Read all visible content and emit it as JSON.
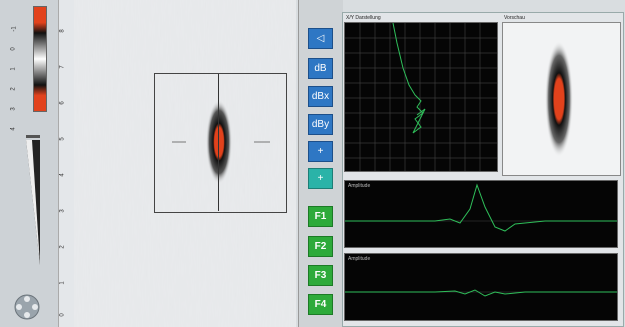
{
  "scale": {
    "labels": [
      "-1",
      "0",
      "1",
      "2",
      "3",
      "4"
    ]
  },
  "ruler": {
    "labels": [
      "8",
      "7",
      "6",
      "5",
      "4",
      "3",
      "2",
      "1",
      "0"
    ]
  },
  "toolbar": {
    "buttons": [
      {
        "name": "cursor",
        "label": "◁"
      },
      {
        "name": "db",
        "label": "dB"
      },
      {
        "name": "db-x",
        "label": "dBx"
      },
      {
        "name": "db-y",
        "label": "dBy"
      },
      {
        "name": "crosshair",
        "label": "+"
      },
      {
        "name": "crosshair-add",
        "label": "+"
      }
    ],
    "function_buttons": [
      "F1",
      "F2",
      "F3",
      "F4"
    ]
  },
  "panels": {
    "xy_title": "X/Y Darstellung",
    "view_title": "Vorschau",
    "ascan1_title": "Amplitude",
    "ascan2_title": "Amplitude"
  },
  "colors": {
    "accent_blue": "#2e77c4",
    "accent_green": "#2daa3a",
    "signal": "#2fbf5a",
    "hot": "#e2421c"
  }
}
